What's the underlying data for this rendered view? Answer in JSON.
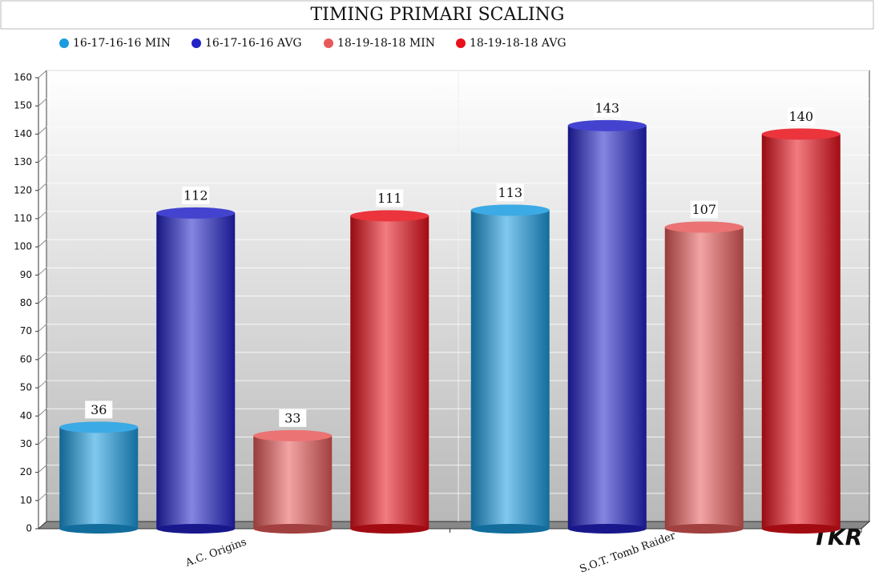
{
  "chart_data": {
    "type": "bar",
    "title": "TIMING PRIMARI SCALING",
    "categories": [
      "A.C. Origins",
      "S.O.T. Tomb Raider"
    ],
    "series": [
      {
        "name": "16-17-16-16 MIN",
        "color": "#1a9be0",
        "values": [
          36,
          113
        ]
      },
      {
        "name": "16-17-16-16 AVG",
        "color": "#2222c8",
        "values": [
          112,
          143
        ]
      },
      {
        "name": "18-19-18-18 MIN",
        "color": "#e85a5a",
        "values": [
          33,
          107
        ]
      },
      {
        "name": "18-19-18-18 AVG",
        "color": "#e8101a",
        "values": [
          111,
          140
        ]
      }
    ],
    "ylim": [
      0,
      160
    ],
    "yticks": [
      0,
      10,
      20,
      30,
      40,
      50,
      60,
      70,
      80,
      90,
      100,
      110,
      120,
      130,
      140,
      150,
      160
    ],
    "grid": true,
    "legend": "top",
    "watermark": "TKR"
  }
}
